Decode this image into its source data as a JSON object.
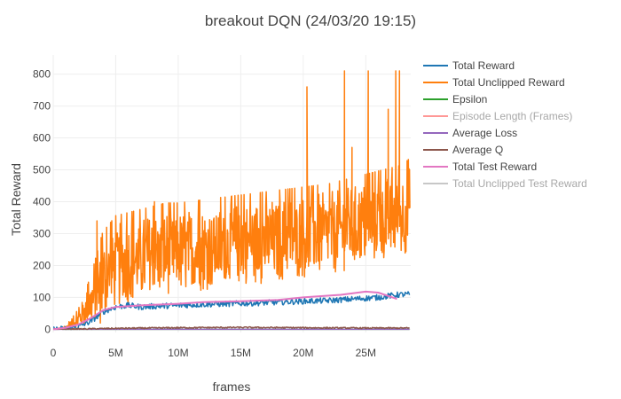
{
  "chart_data": {
    "type": "line",
    "title": "breakout DQN (24/03/20 19:15)",
    "xlabel": "frames",
    "ylabel": "Total Reward",
    "xlim": [
      0,
      28600000
    ],
    "ylim": [
      -10,
      860
    ],
    "x_ticks": [
      0,
      5000000,
      10000000,
      15000000,
      20000000,
      25000000
    ],
    "x_tick_labels": [
      "0",
      "5M",
      "10M",
      "15M",
      "20M",
      "25M"
    ],
    "y_ticks": [
      0,
      100,
      200,
      300,
      400,
      500,
      600,
      700,
      800
    ],
    "y_tick_labels": [
      "0",
      "100",
      "200",
      "300",
      "400",
      "500",
      "600",
      "700",
      "800"
    ],
    "grid": true,
    "legend_position": "right",
    "series": [
      {
        "name": "Total Reward",
        "color": "#1f77b4",
        "visible": true,
        "x": [
          0,
          1000000,
          2000000,
          3000000,
          4000000,
          5000000,
          6000000,
          7000000,
          8000000,
          10000000,
          12000000,
          14000000,
          16000000,
          18000000,
          20000000,
          22000000,
          24000000,
          26000000,
          27500000,
          28500000
        ],
        "values": [
          0,
          2,
          8,
          25,
          55,
          70,
          75,
          70,
          72,
          75,
          78,
          80,
          82,
          85,
          88,
          90,
          95,
          100,
          108,
          110
        ],
        "noise": 9
      },
      {
        "name": "Total Unclipped Reward",
        "color": "#ff7f0e",
        "visible": true,
        "x": [
          0,
          1000000,
          2000000,
          3000000,
          4000000,
          5000000,
          6000000,
          7000000,
          8000000,
          9000000,
          10000000,
          12000000,
          14000000,
          16000000,
          18000000,
          20000000,
          22000000,
          24000000,
          26000000,
          28000000,
          28500000
        ],
        "values": [
          0,
          5,
          30,
          80,
          150,
          200,
          210,
          220,
          230,
          240,
          240,
          250,
          260,
          270,
          280,
          290,
          300,
          320,
          340,
          360,
          380
        ],
        "noise": 130,
        "spikes": [
          {
            "x": 3500000,
            "y": 340
          },
          {
            "x": 8100000,
            "y": 400
          },
          {
            "x": 20300000,
            "y": 760
          },
          {
            "x": 23300000,
            "y": 810
          },
          {
            "x": 23900000,
            "y": 570
          },
          {
            "x": 25200000,
            "y": 810
          },
          {
            "x": 26800000,
            "y": 690
          },
          {
            "x": 27400000,
            "y": 810
          },
          {
            "x": 27700000,
            "y": 810
          },
          {
            "x": 28500000,
            "y": 500
          }
        ]
      },
      {
        "name": "Epsilon",
        "color": "#2ca02c",
        "visible": true,
        "x": [
          0,
          1000000,
          28500000
        ],
        "values": [
          1,
          0.1,
          0.01
        ],
        "noise": 0
      },
      {
        "name": "Episode Length (Frames)",
        "color": "#ff9896",
        "visible": false,
        "x": [],
        "values": [],
        "noise": 0
      },
      {
        "name": "Average Loss",
        "color": "#9467bd",
        "visible": true,
        "x": [
          0,
          28500000
        ],
        "values": [
          0,
          0
        ],
        "noise": 0
      },
      {
        "name": "Average Q",
        "color": "#8c564b",
        "visible": true,
        "x": [
          0,
          2000000,
          5000000,
          10000000,
          15000000,
          20000000,
          25000000,
          28500000
        ],
        "values": [
          0,
          1,
          3,
          5,
          6,
          5,
          4,
          4
        ],
        "noise": 2
      },
      {
        "name": "Total Test Reward",
        "color": "#e377c2",
        "visible": true,
        "x": [
          0,
          1000000,
          2000000,
          3000000,
          4000000,
          5000000,
          7000000,
          10000000,
          12000000,
          15000000,
          18000000,
          20000000,
          23000000,
          25000000,
          26000000,
          27500000
        ],
        "values": [
          0,
          5,
          15,
          35,
          60,
          70,
          75,
          80,
          85,
          88,
          92,
          100,
          108,
          118,
          115,
          95
        ],
        "noise": 0
      },
      {
        "name": "Total Unclipped Test Reward",
        "color": "#c7c7c7",
        "visible": false,
        "x": [],
        "values": [],
        "noise": 0
      }
    ]
  }
}
